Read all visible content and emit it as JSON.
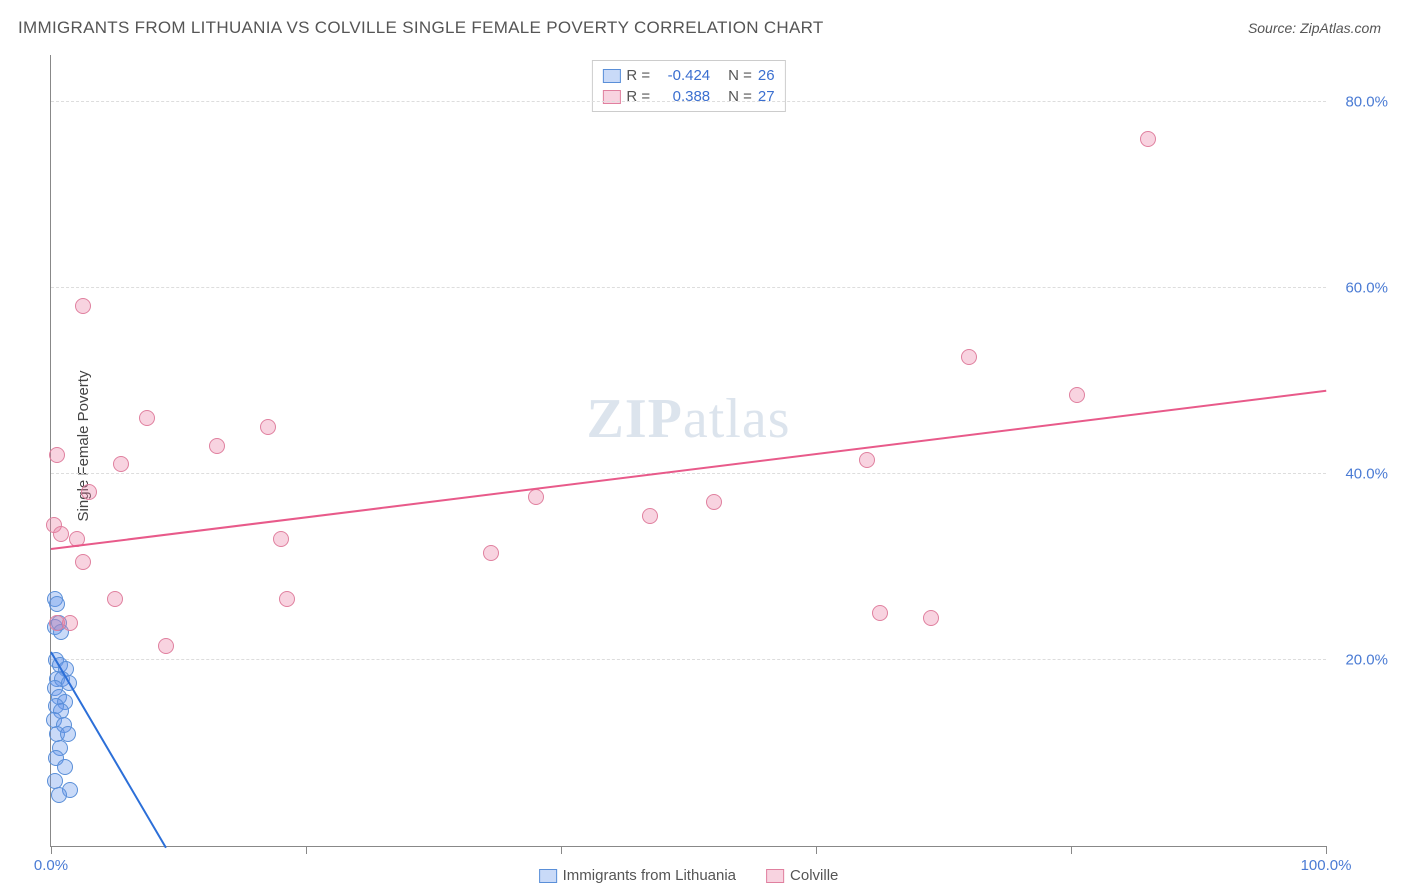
{
  "title": "IMMIGRANTS FROM LITHUANIA VS COLVILLE SINGLE FEMALE POVERTY CORRELATION CHART",
  "source": "Source: ZipAtlas.com",
  "watermark_a": "ZIP",
  "watermark_b": "atlas",
  "y_axis_label": "Single Female Poverty",
  "chart": {
    "type": "scatter",
    "xlim": [
      0,
      100
    ],
    "ylim": [
      0,
      85
    ],
    "yticks": [
      {
        "v": 20,
        "label": "20.0%"
      },
      {
        "v": 40,
        "label": "40.0%"
      },
      {
        "v": 60,
        "label": "60.0%"
      },
      {
        "v": 80,
        "label": "80.0%"
      }
    ],
    "xticks": [
      {
        "v": 0,
        "label": "0.0%"
      },
      {
        "v": 20,
        "label": ""
      },
      {
        "v": 40,
        "label": ""
      },
      {
        "v": 60,
        "label": ""
      },
      {
        "v": 80,
        "label": ""
      },
      {
        "v": 100,
        "label": "100.0%"
      }
    ],
    "background_color": "#ffffff",
    "grid_color": "#dddddd",
    "axis_color": "#888888",
    "marker_radius": 8,
    "series": [
      {
        "name": "Immigrants from Lithuania",
        "fill": "rgba(100,150,235,0.35)",
        "stroke": "#5a8fd8",
        "R": "-0.424",
        "N": "26",
        "trend": {
          "x1": 0,
          "y1": 21,
          "x2": 9,
          "y2": 0,
          "color": "#2c6fd8",
          "width": 2
        },
        "points": [
          {
            "x": 0.3,
            "y": 26.5
          },
          {
            "x": 0.5,
            "y": 26
          },
          {
            "x": 0.3,
            "y": 23.5
          },
          {
            "x": 0.6,
            "y": 24
          },
          {
            "x": 0.8,
            "y": 23
          },
          {
            "x": 0.4,
            "y": 20
          },
          {
            "x": 0.7,
            "y": 19.5
          },
          {
            "x": 1.2,
            "y": 19
          },
          {
            "x": 0.5,
            "y": 18
          },
          {
            "x": 0.9,
            "y": 18
          },
          {
            "x": 0.3,
            "y": 17
          },
          {
            "x": 1.4,
            "y": 17.5
          },
          {
            "x": 0.6,
            "y": 16
          },
          {
            "x": 1.1,
            "y": 15.5
          },
          {
            "x": 0.4,
            "y": 15
          },
          {
            "x": 0.8,
            "y": 14.5
          },
          {
            "x": 0.2,
            "y": 13.5
          },
          {
            "x": 1.0,
            "y": 13
          },
          {
            "x": 0.5,
            "y": 12
          },
          {
            "x": 1.3,
            "y": 12
          },
          {
            "x": 0.7,
            "y": 10.5
          },
          {
            "x": 0.4,
            "y": 9.5
          },
          {
            "x": 1.1,
            "y": 8.5
          },
          {
            "x": 0.3,
            "y": 7
          },
          {
            "x": 1.5,
            "y": 6
          },
          {
            "x": 0.6,
            "y": 5.5
          }
        ]
      },
      {
        "name": "Colville",
        "fill": "rgba(235,130,165,0.35)",
        "stroke": "#e0809f",
        "R": "0.388",
        "N": "27",
        "trend": {
          "x1": 0,
          "y1": 32,
          "x2": 100,
          "y2": 49,
          "color": "#e85a8a",
          "width": 2
        },
        "points": [
          {
            "x": 2.5,
            "y": 58
          },
          {
            "x": 7.5,
            "y": 46
          },
          {
            "x": 13,
            "y": 43
          },
          {
            "x": 17,
            "y": 45
          },
          {
            "x": 0.5,
            "y": 42
          },
          {
            "x": 5.5,
            "y": 41
          },
          {
            "x": 3,
            "y": 38
          },
          {
            "x": 0.2,
            "y": 34.5
          },
          {
            "x": 0.8,
            "y": 33.5
          },
          {
            "x": 2,
            "y": 33
          },
          {
            "x": 18,
            "y": 33
          },
          {
            "x": 2.5,
            "y": 30.5
          },
          {
            "x": 34.5,
            "y": 31.5
          },
          {
            "x": 5,
            "y": 26.5
          },
          {
            "x": 18.5,
            "y": 26.5
          },
          {
            "x": 0.5,
            "y": 24
          },
          {
            "x": 1.5,
            "y": 24
          },
          {
            "x": 9,
            "y": 21.5
          },
          {
            "x": 38,
            "y": 37.5
          },
          {
            "x": 47,
            "y": 35.5
          },
          {
            "x": 52,
            "y": 37
          },
          {
            "x": 64,
            "y": 41.5
          },
          {
            "x": 65,
            "y": 25
          },
          {
            "x": 69,
            "y": 24.5
          },
          {
            "x": 72,
            "y": 52.5
          },
          {
            "x": 80.5,
            "y": 48.5
          },
          {
            "x": 86,
            "y": 76
          }
        ]
      }
    ]
  },
  "legend_top": {
    "border_color": "#cccccc",
    "text_color_label": "#555555",
    "text_color_value": "#3b6fd0",
    "r_label": "R =",
    "n_label": "N ="
  },
  "legend_bottom_color": "#555555"
}
